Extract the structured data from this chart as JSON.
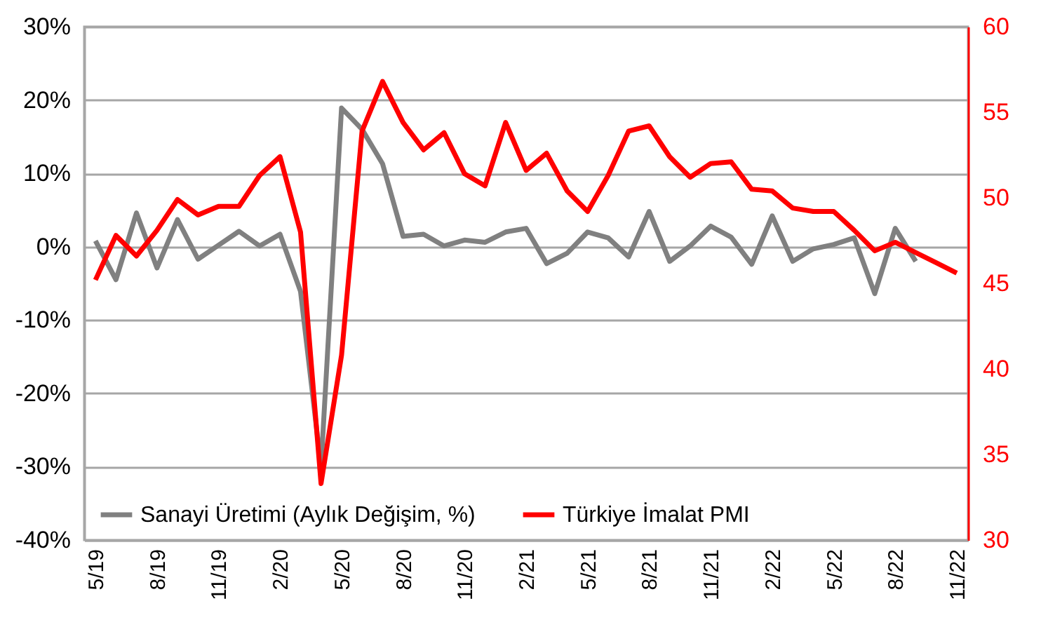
{
  "chart_data": {
    "type": "line",
    "categories": [
      "5/19",
      null,
      null,
      "8/19",
      null,
      null,
      "11/19",
      null,
      null,
      "2/20",
      null,
      null,
      "5/20",
      null,
      null,
      "8/20",
      null,
      null,
      "11/20",
      null,
      null,
      "2/21",
      null,
      null,
      "5/21",
      null,
      null,
      "8/21",
      null,
      null,
      "11/21",
      null,
      null,
      "2/22",
      null,
      null,
      "5/22",
      null,
      null,
      "8/22",
      null,
      null,
      "11/22"
    ],
    "series": [
      {
        "name": "Sanayi Üretimi (Aylık Değişim, %)",
        "color": "#808080",
        "values": [
          0.8,
          -4.5,
          4.6,
          -2.9,
          3.7,
          -1.7,
          0.2,
          2.1,
          0.1,
          1.7,
          -6.1,
          -30,
          18.9,
          16.0,
          11.3,
          1.4,
          1.7,
          0.1,
          0.9,
          0.6,
          2.0,
          2.5,
          -2.3,
          -0.9,
          2.0,
          1.2,
          -1.4,
          4.8,
          -2.0,
          0.1,
          2.8,
          1.3,
          -2.4,
          4.2,
          -2.0,
          -0.3,
          0.3,
          1.2,
          -6.4,
          2.5,
          -2.0,
          null,
          null
        ]
      },
      {
        "name": "Türkiye İmalat PMI",
        "color": "#ff0000",
        "axis": "y2",
        "values": [
          45.2,
          47.8,
          46.6,
          48.1,
          49.9,
          49.0,
          49.5,
          49.5,
          51.3,
          52.4,
          48.0,
          33.3,
          40.8,
          53.9,
          56.8,
          54.4,
          52.8,
          53.8,
          51.4,
          50.7,
          54.4,
          51.6,
          52.6,
          50.4,
          49.2,
          51.3,
          53.9,
          54.2,
          52.4,
          51.2,
          52.0,
          52.1,
          50.5,
          50.4,
          49.4,
          49.2,
          49.2,
          48.1,
          46.9,
          47.4,
          46.8,
          46.2,
          45.6
        ]
      }
    ],
    "ylim": [
      -40,
      30
    ],
    "yticks": [
      {
        "value": -40,
        "label": "-40%"
      },
      {
        "value": -30,
        "label": "-30%"
      },
      {
        "value": -20,
        "label": "-20%"
      },
      {
        "value": -10,
        "label": "-10%"
      },
      {
        "value": 0,
        "label": "0%"
      },
      {
        "value": 10,
        "label": "10%"
      },
      {
        "value": 20,
        "label": "20%"
      },
      {
        "value": 30,
        "label": "30%"
      }
    ],
    "y2lim": [
      30,
      60
    ],
    "y2ticks": [
      30,
      35,
      40,
      45,
      50,
      55,
      60
    ],
    "grid": "y",
    "legend": "bottom"
  }
}
